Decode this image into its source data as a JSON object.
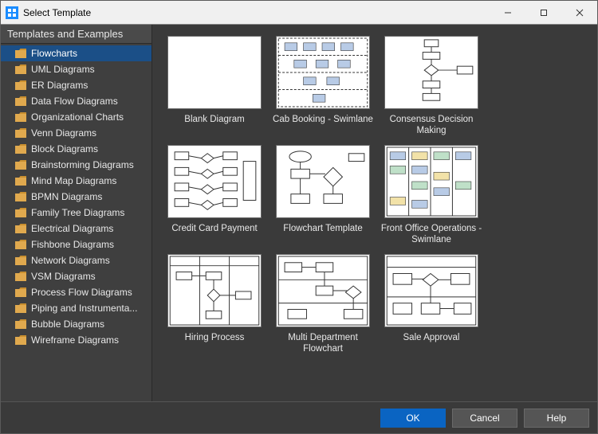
{
  "window": {
    "title": "Select Template"
  },
  "sidebar": {
    "header": "Templates and Examples",
    "items": [
      "Flowcharts",
      "UML Diagrams",
      "ER Diagrams",
      "Data Flow Diagrams",
      "Organizational Charts",
      "Venn Diagrams",
      "Block Diagrams",
      "Brainstorming Diagrams",
      "Mind Map Diagrams",
      "BPMN Diagrams",
      "Family Tree Diagrams",
      "Electrical Diagrams",
      "Fishbone Diagrams",
      "Network Diagrams",
      "VSM Diagrams",
      "Process Flow Diagrams",
      "Piping and Instrumenta...",
      "Bubble Diagrams",
      "Wireframe Diagrams"
    ],
    "selected_index": 0
  },
  "templates": [
    {
      "label": "Blank Diagram",
      "kind": "blank"
    },
    {
      "label": "Cab Booking - Swimlane",
      "kind": "swimlane"
    },
    {
      "label": "Consensus Decision Making",
      "kind": "flow-tall"
    },
    {
      "label": "Credit Card Payment",
      "kind": "flow-tree"
    },
    {
      "label": "Flowchart Template",
      "kind": "flow-simple"
    },
    {
      "label": "Front Office Operations - Swimlane",
      "kind": "swimlane2"
    },
    {
      "label": "Hiring Process",
      "kind": "flow-sparse"
    },
    {
      "label": "Multi Department Flowchart",
      "kind": "flow-lanes"
    },
    {
      "label": "Sale Approval",
      "kind": "flow-wide"
    }
  ],
  "buttons": {
    "ok": "OK",
    "cancel": "Cancel",
    "help": "Help"
  },
  "colors": {
    "window_bg": "#3a3a3a",
    "sidebar_bg": "#3f3f3f",
    "selection_bg": "#1b4f87",
    "folder_fill": "#e0a94e",
    "folder_tab": "#c98f2f",
    "primary_btn": "#0a64c2",
    "btn_bg": "#555555",
    "text": "#e8e8e8",
    "thumb_bg": "#ffffff",
    "titlebar_bg": "#f0f0f0"
  }
}
